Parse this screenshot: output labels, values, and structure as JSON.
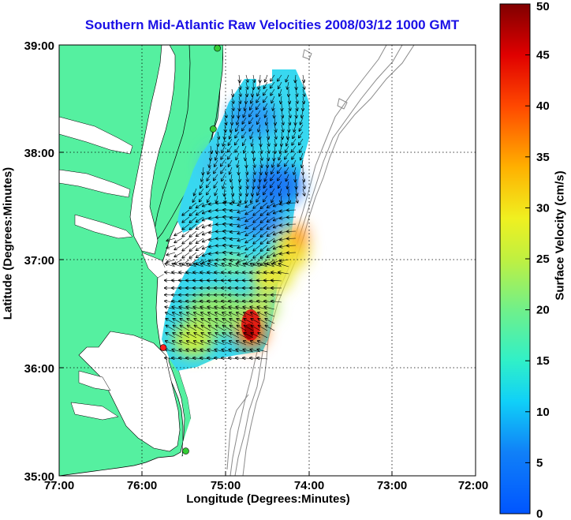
{
  "map": {
    "title": "Southern Mid-Atlantic Raw Velocities 2008/03/12 1000 GMT",
    "xlabel": "Longitude (Degrees:Minutes)",
    "ylabel": "Latitude (Degrees:Minutes)",
    "x_ticks": [
      "77:00",
      "76:00",
      "75:00",
      "74:00",
      "73:00",
      "72:00"
    ],
    "y_ticks": [
      "39:00",
      "38:00",
      "37:00",
      "36:00",
      "35:00"
    ],
    "lon_range": [
      -77,
      -72
    ],
    "lat_range": [
      35,
      39
    ],
    "grid": "dotted",
    "land_color": "#55f0a0",
    "water_color": "#ffffff",
    "stations": [
      {
        "lon": -75.1,
        "lat": 38.97,
        "color": "#33cc33"
      },
      {
        "lon": -75.15,
        "lat": 38.22,
        "color": "#33cc33"
      },
      {
        "lon": -75.75,
        "lat": 36.19,
        "color": "#ff2020"
      },
      {
        "lon": -75.48,
        "lat": 35.23,
        "color": "#33cc33"
      }
    ]
  },
  "colorbar": {
    "label": "Surface Velocity (cm/s)",
    "min": 0,
    "max": 50,
    "ticks": [
      "0",
      "5",
      "10",
      "15",
      "20",
      "25",
      "30",
      "35",
      "40",
      "45",
      "50"
    ]
  },
  "chart_data": {
    "type": "heatmap",
    "title": "Southern Mid-Atlantic Raw Velocities 2008/03/12 1000 GMT",
    "xlabel": "Longitude (Degrees:Minutes)",
    "ylabel": "Latitude (Degrees:Minutes)",
    "colorbar_label": "Surface Velocity (cm/s)",
    "value_range": [
      0,
      50
    ],
    "regions": [
      {
        "lon": -74.5,
        "lat": 38.35,
        "speed": 10
      },
      {
        "lon": -74.45,
        "lat": 37.72,
        "speed": 5
      },
      {
        "lon": -74.95,
        "lat": 37.55,
        "speed": 12
      },
      {
        "lon": -74.75,
        "lat": 37.35,
        "speed": 10
      },
      {
        "lon": -74.35,
        "lat": 37.05,
        "speed": 28
      },
      {
        "lon": -74.6,
        "lat": 36.75,
        "speed": 25
      },
      {
        "lon": -74.85,
        "lat": 36.65,
        "speed": 18
      },
      {
        "lon": -74.75,
        "lat": 36.3,
        "speed": 45
      },
      {
        "lon": -75.3,
        "lat": 36.35,
        "speed": 20
      }
    ]
  }
}
